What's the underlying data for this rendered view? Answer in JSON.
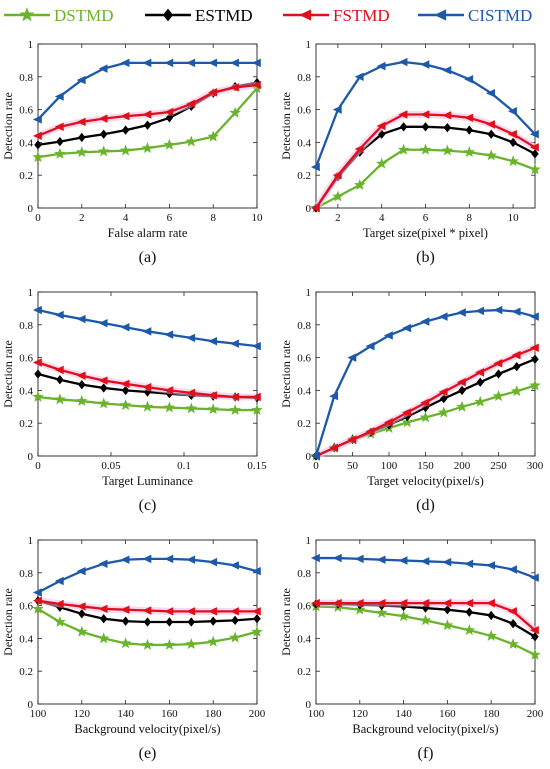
{
  "colors": {
    "DSTMD": "#6ab42d",
    "ESTMD": "#000000",
    "FSTMD": "#e0101a",
    "CISTMD": "#1d59a8",
    "highlight": "#f4b8e8"
  },
  "legend": [
    {
      "name": "DSTMD",
      "marker": "star"
    },
    {
      "name": "ESTMD",
      "marker": "diamond"
    },
    {
      "name": "FSTMD",
      "marker": "triangle-left"
    },
    {
      "name": "CISTMD",
      "marker": "triangle-left"
    }
  ],
  "chart_data": [
    {
      "id": "a",
      "panel_label": "(a)",
      "type": "line",
      "xlabel": "False alarm rate",
      "ylabel": "Detection rate",
      "xlim": [
        0,
        10
      ],
      "ylim": [
        0,
        1
      ],
      "xticks": [
        "0",
        "2",
        "4",
        "6",
        "8",
        "10"
      ],
      "xtick_values": [
        0,
        2,
        4,
        6,
        8,
        10
      ],
      "yticks": [
        "0",
        "0.2",
        "0.4",
        "0.6",
        "0.8",
        "1"
      ],
      "ytick_values": [
        0,
        0.2,
        0.4,
        0.6,
        0.8,
        1
      ],
      "x": [
        0,
        1,
        2,
        3,
        4,
        5,
        6,
        7,
        8,
        9,
        10
      ],
      "series": [
        {
          "name": "DSTMD",
          "values": [
            0.31,
            0.33,
            0.34,
            0.345,
            0.35,
            0.365,
            0.385,
            0.405,
            0.435,
            0.58,
            0.73
          ]
        },
        {
          "name": "ESTMD",
          "values": [
            0.385,
            0.405,
            0.43,
            0.45,
            0.475,
            0.505,
            0.55,
            0.62,
            0.7,
            0.74,
            0.765
          ]
        },
        {
          "name": "FSTMD",
          "values": [
            0.44,
            0.495,
            0.525,
            0.545,
            0.56,
            0.57,
            0.585,
            0.635,
            0.705,
            0.735,
            0.75
          ]
        },
        {
          "name": "CISTMD",
          "values": [
            0.54,
            0.68,
            0.78,
            0.85,
            0.885,
            0.885,
            0.885,
            0.885,
            0.885,
            0.885,
            0.885
          ]
        }
      ]
    },
    {
      "id": "b",
      "panel_label": "(b)",
      "type": "line",
      "xlabel": "Target size(pixel * pixel)",
      "ylabel": "Detection rate",
      "xlim": [
        1,
        11
      ],
      "ylim": [
        0,
        1
      ],
      "xticks": [
        "2",
        "4",
        "6",
        "8",
        "10"
      ],
      "xtick_values": [
        2,
        4,
        6,
        8,
        10
      ],
      "yticks": [
        "0",
        "0.2",
        "0.4",
        "0.6",
        "0.8",
        "1"
      ],
      "ytick_values": [
        0,
        0.2,
        0.4,
        0.6,
        0.8,
        1
      ],
      "x": [
        1,
        2,
        3,
        4,
        5,
        6,
        7,
        8,
        9,
        10,
        11
      ],
      "series": [
        {
          "name": "DSTMD",
          "values": [
            0.0,
            0.07,
            0.14,
            0.27,
            0.355,
            0.355,
            0.35,
            0.34,
            0.32,
            0.285,
            0.235
          ]
        },
        {
          "name": "ESTMD",
          "values": [
            0.0,
            0.19,
            0.34,
            0.45,
            0.495,
            0.495,
            0.49,
            0.475,
            0.45,
            0.4,
            0.33
          ]
        },
        {
          "name": "FSTMD",
          "values": [
            0.0,
            0.2,
            0.36,
            0.5,
            0.57,
            0.57,
            0.565,
            0.55,
            0.51,
            0.45,
            0.37
          ]
        },
        {
          "name": "CISTMD",
          "values": [
            0.25,
            0.6,
            0.8,
            0.865,
            0.89,
            0.875,
            0.84,
            0.785,
            0.7,
            0.59,
            0.45
          ]
        }
      ]
    },
    {
      "id": "c",
      "panel_label": "(c)",
      "type": "line",
      "xlabel": "Target Luminance",
      "ylabel": "Detection rate",
      "xlim": [
        0,
        0.15
      ],
      "ylim": [
        0,
        1
      ],
      "xticks": [
        "0",
        "0.05",
        "0.1",
        "0.15"
      ],
      "xtick_values": [
        0,
        0.05,
        0.1,
        0.15
      ],
      "yticks": [
        "0",
        "0.2",
        "0.4",
        "0.6",
        "0.8",
        "1"
      ],
      "ytick_values": [
        0,
        0.2,
        0.4,
        0.6,
        0.8,
        1
      ],
      "x": [
        0,
        0.015,
        0.03,
        0.045,
        0.06,
        0.075,
        0.09,
        0.105,
        0.12,
        0.135,
        0.15
      ],
      "series": [
        {
          "name": "DSTMD",
          "values": [
            0.36,
            0.345,
            0.335,
            0.32,
            0.31,
            0.3,
            0.295,
            0.29,
            0.285,
            0.28,
            0.28
          ]
        },
        {
          "name": "ESTMD",
          "values": [
            0.5,
            0.465,
            0.435,
            0.415,
            0.4,
            0.39,
            0.38,
            0.37,
            0.365,
            0.36,
            0.355
          ]
        },
        {
          "name": "FSTMD",
          "values": [
            0.57,
            0.525,
            0.49,
            0.46,
            0.44,
            0.42,
            0.4,
            0.385,
            0.37,
            0.36,
            0.36
          ]
        },
        {
          "name": "CISTMD",
          "values": [
            0.89,
            0.86,
            0.835,
            0.81,
            0.785,
            0.76,
            0.74,
            0.72,
            0.7,
            0.685,
            0.67
          ]
        }
      ]
    },
    {
      "id": "d",
      "panel_label": "(d)",
      "type": "line",
      "xlabel": "Target velocity(pixel/s)",
      "ylabel": "Detection rate",
      "xlim": [
        0,
        300
      ],
      "ylim": [
        0,
        1
      ],
      "xticks": [
        "0",
        "50",
        "100",
        "150",
        "200",
        "250",
        "300"
      ],
      "xtick_values": [
        0,
        50,
        100,
        150,
        200,
        250,
        300
      ],
      "yticks": [
        "0",
        "0.2",
        "0.4",
        "0.6",
        "0.8",
        "1"
      ],
      "ytick_values": [
        0,
        0.2,
        0.4,
        0.6,
        0.8,
        1
      ],
      "x": [
        0,
        25,
        50,
        75,
        100,
        125,
        150,
        175,
        200,
        225,
        250,
        275,
        300
      ],
      "series": [
        {
          "name": "DSTMD",
          "values": [
            0.0,
            0.05,
            0.1,
            0.135,
            0.17,
            0.205,
            0.235,
            0.265,
            0.3,
            0.33,
            0.365,
            0.395,
            0.43
          ]
        },
        {
          "name": "ESTMD",
          "values": [
            0.0,
            0.05,
            0.1,
            0.145,
            0.19,
            0.24,
            0.295,
            0.35,
            0.4,
            0.45,
            0.5,
            0.545,
            0.59
          ]
        },
        {
          "name": "FSTMD",
          "values": [
            0.0,
            0.05,
            0.1,
            0.15,
            0.205,
            0.265,
            0.325,
            0.39,
            0.45,
            0.51,
            0.565,
            0.615,
            0.66
          ]
        },
        {
          "name": "CISTMD",
          "values": [
            0.0,
            0.365,
            0.6,
            0.67,
            0.735,
            0.78,
            0.82,
            0.85,
            0.875,
            0.885,
            0.89,
            0.88,
            0.85
          ]
        }
      ]
    },
    {
      "id": "e",
      "panel_label": "(e)",
      "type": "line",
      "xlabel": "Background velocity(pixel/s)",
      "ylabel": "Detection rate",
      "xlim": [
        100,
        200
      ],
      "ylim": [
        0,
        1
      ],
      "xticks": [
        "100",
        "120",
        "140",
        "160",
        "180",
        "200"
      ],
      "xtick_values": [
        100,
        120,
        140,
        160,
        180,
        200
      ],
      "yticks": [
        "0",
        "0.2",
        "0.4",
        "0.6",
        "0.8",
        "1"
      ],
      "ytick_values": [
        0,
        0.2,
        0.4,
        0.6,
        0.8,
        1
      ],
      "x": [
        100,
        110,
        120,
        130,
        140,
        150,
        160,
        170,
        180,
        190,
        200
      ],
      "series": [
        {
          "name": "DSTMD",
          "values": [
            0.58,
            0.5,
            0.44,
            0.4,
            0.37,
            0.36,
            0.36,
            0.365,
            0.38,
            0.405,
            0.44
          ]
        },
        {
          "name": "ESTMD",
          "values": [
            0.63,
            0.59,
            0.55,
            0.52,
            0.505,
            0.5,
            0.5,
            0.5,
            0.505,
            0.51,
            0.52
          ]
        },
        {
          "name": "FSTMD",
          "values": [
            0.63,
            0.61,
            0.595,
            0.58,
            0.575,
            0.57,
            0.565,
            0.565,
            0.565,
            0.565,
            0.565
          ]
        },
        {
          "name": "CISTMD",
          "values": [
            0.68,
            0.75,
            0.81,
            0.855,
            0.88,
            0.885,
            0.885,
            0.88,
            0.865,
            0.845,
            0.81
          ]
        }
      ]
    },
    {
      "id": "f",
      "panel_label": "(f)",
      "type": "line",
      "xlabel": "Background velocity(pixel/s)",
      "ylabel": "Detection rate",
      "xlim": [
        100,
        200
      ],
      "ylim": [
        0,
        1
      ],
      "xticks": [
        "100",
        "120",
        "140",
        "160",
        "180",
        "200"
      ],
      "xtick_values": [
        100,
        120,
        140,
        160,
        180,
        200
      ],
      "yticks": [
        "0",
        "0.2",
        "0.4",
        "0.6",
        "0.8",
        "1"
      ],
      "ytick_values": [
        0,
        0.2,
        0.4,
        0.6,
        0.8,
        1
      ],
      "x": [
        100,
        110,
        120,
        130,
        140,
        150,
        160,
        170,
        180,
        190,
        200
      ],
      "series": [
        {
          "name": "DSTMD",
          "values": [
            0.595,
            0.59,
            0.575,
            0.555,
            0.535,
            0.51,
            0.48,
            0.45,
            0.415,
            0.365,
            0.3
          ]
        },
        {
          "name": "ESTMD",
          "values": [
            0.61,
            0.61,
            0.605,
            0.6,
            0.595,
            0.585,
            0.575,
            0.56,
            0.54,
            0.49,
            0.41
          ]
        },
        {
          "name": "FSTMD",
          "values": [
            0.615,
            0.615,
            0.615,
            0.615,
            0.615,
            0.615,
            0.615,
            0.615,
            0.615,
            0.565,
            0.45
          ]
        },
        {
          "name": "CISTMD",
          "values": [
            0.89,
            0.89,
            0.885,
            0.88,
            0.875,
            0.87,
            0.865,
            0.855,
            0.845,
            0.82,
            0.77
          ]
        }
      ]
    }
  ]
}
